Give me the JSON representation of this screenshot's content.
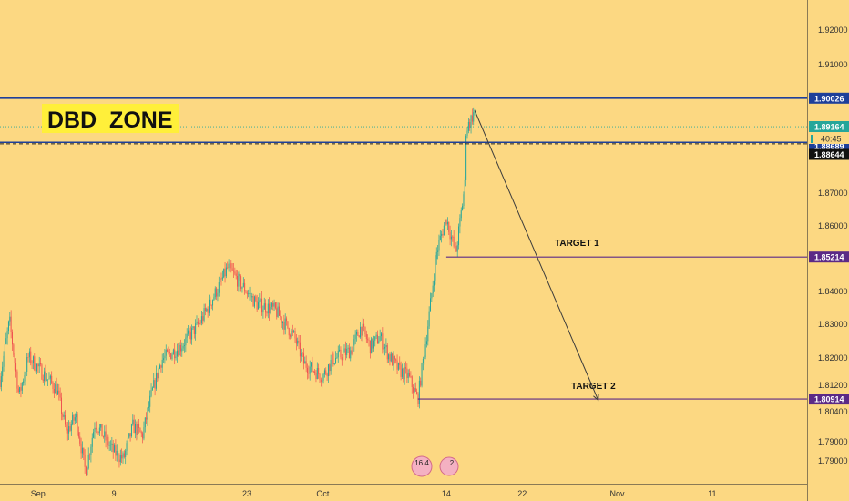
{
  "colors": {
    "background": "#fcd882",
    "candle_up": "#26a69a",
    "candle_down": "#ef5350",
    "resistance_line": "#1e3f9a",
    "target_line": "#5b2a86",
    "price_line": "#26a69a",
    "label_highlight": "#ffef3a",
    "arrow": "#3c3c3c"
  },
  "annotations": {
    "zone_label": "DBD  ZONE",
    "target1_label": "TARGET 1",
    "target2_label": "TARGET 2",
    "event_badge_1": "16 4",
    "event_badge_2": "2"
  },
  "axis": {
    "x_ticks": [
      "Sep",
      "9",
      "23",
      "Oct",
      "14",
      "22",
      "Nov",
      "11"
    ],
    "y_ticks": [
      "1.92000",
      "1.91000",
      "1.87000",
      "1.86000",
      "1.85000",
      "1.84000",
      "1.83000",
      "1.82000",
      "1.81200",
      "1.80400",
      "1.79000",
      "1.79000"
    ]
  },
  "price_labels": {
    "resistance": "1.90026",
    "current": "1.89164",
    "countdown": "40:45",
    "zone_bottom": "1.88689",
    "zone_bottom2": "1.88644",
    "target1": "1.85214",
    "target2": "1.80914"
  },
  "chart_data": {
    "type": "candlestick",
    "ylim": [
      1.7835,
      1.93
    ],
    "x_range": [
      "2018-08-28",
      "2018-11-21"
    ],
    "horizontal_levels": [
      {
        "label": "resistance",
        "value": 1.90026
      },
      {
        "label": "current",
        "value": 1.89164
      },
      {
        "label": "zone_bottom",
        "value": 1.88689
      },
      {
        "label": "zone_bottom2",
        "value": 1.88644
      },
      {
        "label": "target1",
        "value": 1.85214
      },
      {
        "label": "target2",
        "value": 1.80914
      }
    ],
    "projection_arrow": {
      "from": {
        "date": "2018-10-17",
        "value": 1.8965
      },
      "to": {
        "date": "2018-10-30",
        "value": 1.8088
      }
    },
    "price_path": [
      [
        "2018-08-28",
        1.815
      ],
      [
        "2018-08-29",
        1.833
      ],
      [
        "2018-08-30",
        1.81
      ],
      [
        "2018-08-31",
        1.822
      ],
      [
        "2018-09-03",
        1.812
      ],
      [
        "2018-09-04",
        1.799
      ],
      [
        "2018-09-05",
        1.804
      ],
      [
        "2018-09-06",
        1.787
      ],
      [
        "2018-09-07",
        1.802
      ],
      [
        "2018-09-09",
        1.793
      ],
      [
        "2018-09-10",
        1.791
      ],
      [
        "2018-09-11",
        1.801
      ],
      [
        "2018-09-12",
        1.798
      ],
      [
        "2018-09-13",
        1.811
      ],
      [
        "2018-09-14",
        1.821
      ],
      [
        "2018-09-16",
        1.825
      ],
      [
        "2018-09-18",
        1.832
      ],
      [
        "2018-09-20",
        1.843
      ],
      [
        "2018-09-21",
        1.849
      ],
      [
        "2018-09-24",
        1.838
      ],
      [
        "2018-09-26",
        1.836
      ],
      [
        "2018-09-28",
        1.828
      ],
      [
        "2018-09-29",
        1.82
      ],
      [
        "2018-10-01",
        1.816
      ],
      [
        "2018-10-02",
        1.821
      ],
      [
        "2018-10-04",
        1.824
      ],
      [
        "2018-10-05",
        1.831
      ],
      [
        "2018-10-06",
        1.825
      ],
      [
        "2018-10-07",
        1.828
      ],
      [
        "2018-10-08",
        1.822
      ],
      [
        "2018-10-09",
        1.818
      ],
      [
        "2018-10-10",
        1.816
      ],
      [
        "2018-10-11",
        1.8091
      ],
      [
        "2018-10-12",
        1.83
      ],
      [
        "2018-10-13",
        1.854
      ],
      [
        "2018-10-14",
        1.864
      ],
      [
        "2018-10-15",
        1.853
      ],
      [
        "2018-10-16",
        1.875
      ],
      [
        "2018-10-16",
        1.89
      ],
      [
        "2018-10-17",
        1.8965
      ],
      [
        "2018-10-17",
        1.8916
      ]
    ]
  }
}
